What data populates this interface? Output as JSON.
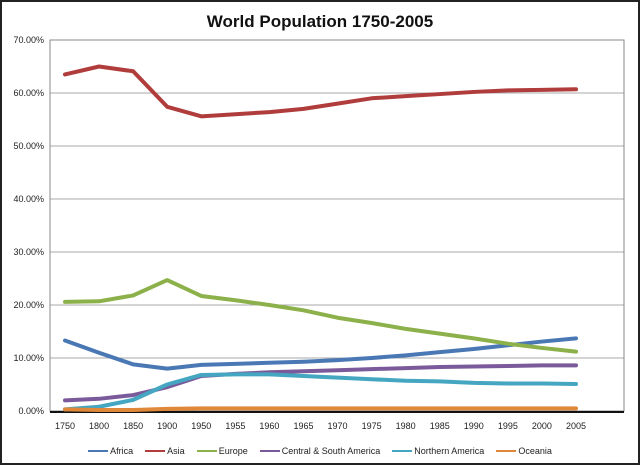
{
  "chart_data": {
    "type": "line",
    "title": "World Population 1750-2005",
    "xlabel": "",
    "ylabel": "",
    "categories": [
      "1750",
      "1800",
      "1850",
      "1900",
      "1950",
      "1955",
      "1960",
      "1965",
      "1970",
      "1975",
      "1980",
      "1985",
      "1990",
      "1995",
      "2000",
      "2005"
    ],
    "ylim": [
      0,
      70
    ],
    "yticks": [
      "0.00%",
      "10.00%",
      "20.00%",
      "30.00%",
      "40.00%",
      "50.00%",
      "60.00%",
      "70.00%"
    ],
    "grid": true,
    "legend": "bottom",
    "series": [
      {
        "name": "Africa",
        "color": "#4a78b4",
        "values": [
          13.3,
          11.0,
          8.8,
          8.0,
          8.7,
          8.9,
          9.1,
          9.3,
          9.6,
          10.0,
          10.5,
          11.1,
          11.7,
          12.4,
          13.1,
          13.7
        ]
      },
      {
        "name": "Asia",
        "color": "#b03c3c",
        "values": [
          63.5,
          65.0,
          64.1,
          57.4,
          55.6,
          56.0,
          56.4,
          57.0,
          58.0,
          59.0,
          59.4,
          59.8,
          60.2,
          60.5,
          60.6,
          60.7
        ]
      },
      {
        "name": "Europe",
        "color": "#8cb04a",
        "values": [
          20.6,
          20.7,
          21.8,
          24.7,
          21.7,
          20.9,
          20.0,
          19.0,
          17.6,
          16.6,
          15.5,
          14.6,
          13.7,
          12.7,
          11.9,
          11.2
        ]
      },
      {
        "name": "Central & South America",
        "color": "#7a5a9a",
        "values": [
          2.0,
          2.3,
          3.0,
          4.5,
          6.6,
          7.0,
          7.3,
          7.5,
          7.7,
          7.9,
          8.1,
          8.3,
          8.4,
          8.5,
          8.6,
          8.6
        ]
      },
      {
        "name": "Northern America",
        "color": "#45a6c2",
        "values": [
          0.3,
          0.8,
          2.1,
          5.0,
          6.8,
          6.9,
          6.9,
          6.6,
          6.3,
          6.0,
          5.7,
          5.6,
          5.3,
          5.2,
          5.2,
          5.1
        ]
      },
      {
        "name": "Oceania",
        "color": "#e0883a",
        "values": [
          0.3,
          0.2,
          0.2,
          0.4,
          0.5,
          0.5,
          0.5,
          0.5,
          0.5,
          0.5,
          0.5,
          0.5,
          0.5,
          0.5,
          0.5,
          0.5
        ]
      }
    ]
  }
}
